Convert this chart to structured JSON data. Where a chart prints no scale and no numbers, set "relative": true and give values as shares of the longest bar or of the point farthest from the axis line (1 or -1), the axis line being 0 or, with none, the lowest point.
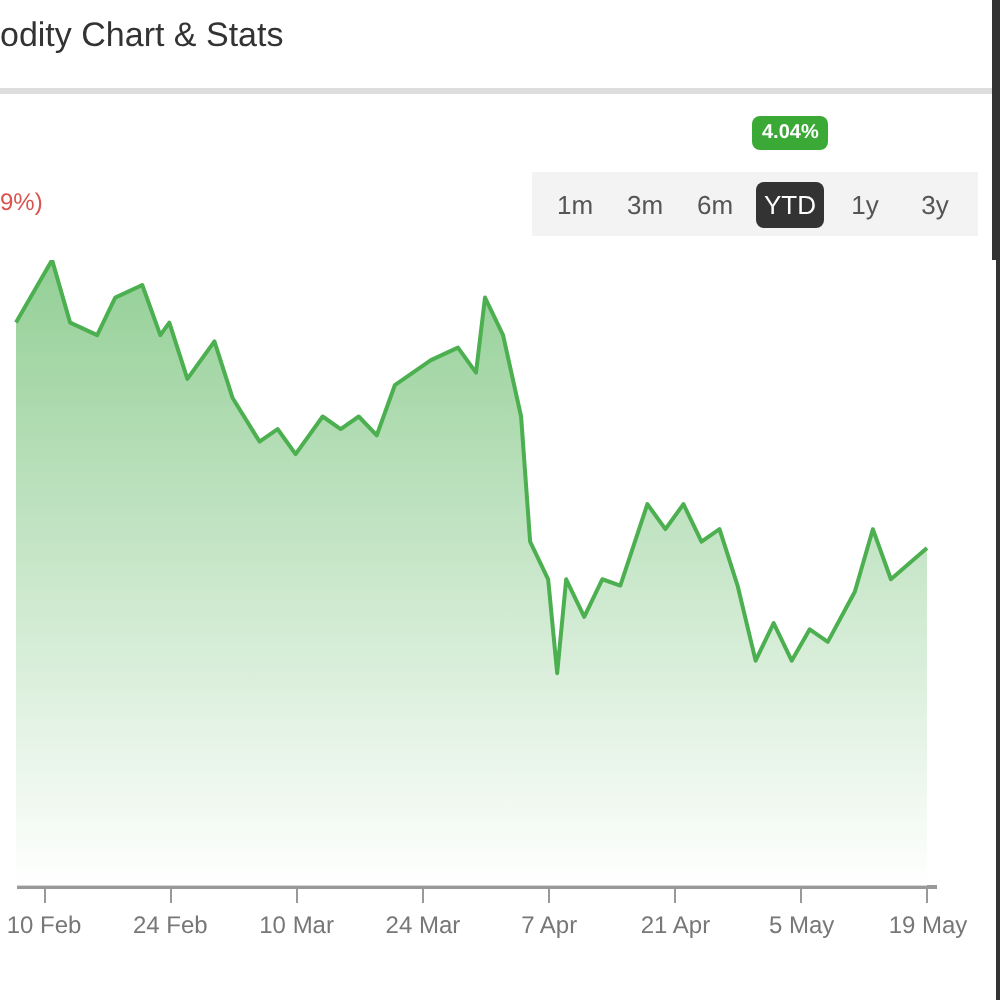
{
  "chart_data": {
    "type": "area",
    "title": "odity Chart & Stats",
    "relative": true,
    "annotations": [
      "9%)",
      "4.04%",
      "1m",
      "3m",
      "6m",
      "YTD",
      "1y",
      "3y"
    ],
    "x": [
      "--02-07",
      "--02-09",
      "--02-11",
      "--02-13",
      "--02-16",
      "--02-18",
      "--02-21",
      "--02-23",
      "--02-24",
      "--02-26",
      "--03-01",
      "--03-03",
      "--03-06",
      "--03-08",
      "--03-10",
      "--03-13",
      "--03-15",
      "--03-17",
      "--03-19",
      "--03-21",
      "--03-25",
      "--03-28",
      "--03-30",
      "--03-31",
      "--04-02",
      "--04-04",
      "--04-05",
      "--04-07",
      "--04-08",
      "--04-09",
      "--04-11",
      "--04-13",
      "--04-15",
      "--04-18",
      "--04-20",
      "--04-22",
      "--04-24",
      "--04-26",
      "--04-28",
      "--04-30",
      "--05-02",
      "--05-04",
      "--05-06",
      "--05-08",
      "--05-11",
      "--05-13",
      "--05-15",
      "--05-19"
    ],
    "values": [
      0.9,
      0.95,
      1.0,
      0.9,
      0.88,
      0.94,
      0.96,
      0.88,
      0.9,
      0.81,
      0.87,
      0.78,
      0.71,
      0.73,
      0.69,
      0.75,
      0.73,
      0.75,
      0.72,
      0.8,
      0.84,
      0.86,
      0.82,
      0.94,
      0.88,
      0.75,
      0.55,
      0.49,
      0.34,
      0.49,
      0.43,
      0.49,
      0.48,
      0.61,
      0.57,
      0.61,
      0.55,
      0.57,
      0.48,
      0.36,
      0.42,
      0.36,
      0.41,
      0.39,
      0.47,
      0.57,
      0.49,
      0.54
    ],
    "color": "#4caf50",
    "xlim": [
      "--02-07",
      "--05-20"
    ],
    "xticks": [
      {
        "value": "--02-10",
        "label": "10 Feb"
      },
      {
        "value": "--02-24",
        "label": "24 Feb"
      },
      {
        "value": "--03-10",
        "label": "10 Mar"
      },
      {
        "value": "--03-24",
        "label": "24 Mar"
      },
      {
        "value": "--04-07",
        "label": "7 Apr"
      },
      {
        "value": "--04-21",
        "label": "21 Apr"
      },
      {
        "value": "--05-05",
        "label": "5 May"
      },
      {
        "value": "--05-19",
        "label": "19 May"
      }
    ],
    "grid": false,
    "legend": false
  }
}
